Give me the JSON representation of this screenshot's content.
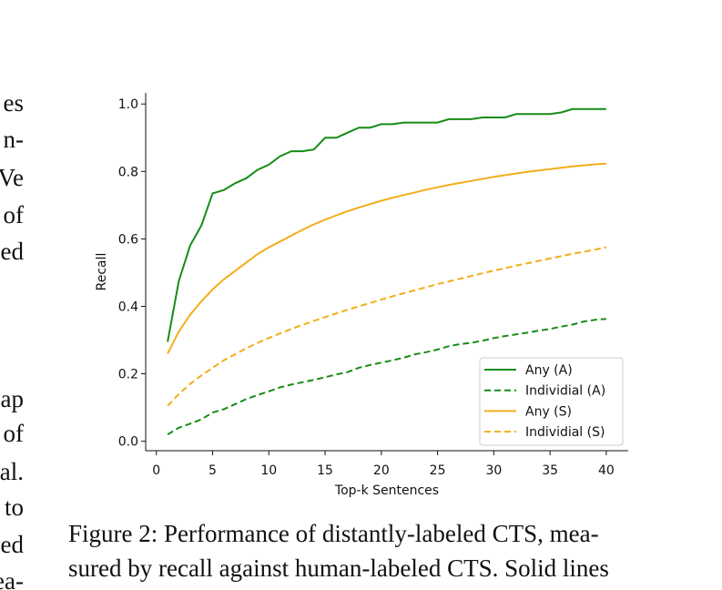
{
  "left_text": [
    "es",
    "n-",
    "Ve",
    "of",
    "ed",
    "ap",
    "of",
    "al.",
    "to",
    "ed",
    "ea-"
  ],
  "chart_data": {
    "type": "line",
    "xlabel": "Top-k Sentences",
    "ylabel": "Recall",
    "x": [
      1,
      2,
      3,
      4,
      5,
      6,
      7,
      8,
      9,
      10,
      11,
      12,
      13,
      14,
      15,
      16,
      17,
      18,
      19,
      20,
      21,
      22,
      23,
      24,
      25,
      26,
      27,
      28,
      29,
      30,
      31,
      32,
      33,
      34,
      35,
      36,
      37,
      38,
      39,
      40
    ],
    "xlim": [
      -0.95,
      41.95
    ],
    "xticks": [
      0,
      5,
      10,
      15,
      20,
      25,
      30,
      35,
      40
    ],
    "ylim": [
      -0.028,
      1.033
    ],
    "yticks": [
      {
        "value": 0,
        "label": "0.0"
      },
      0.2,
      0.4,
      0.6,
      0.8,
      {
        "value": 1,
        "label": "1.0"
      }
    ],
    "grid": false,
    "legend": "lower right",
    "series": [
      {
        "name": "Any (A)",
        "color": "#168c16",
        "linestyle": "solid",
        "values": [
          0.295,
          0.475,
          0.58,
          0.64,
          0.735,
          0.745,
          0.765,
          0.78,
          0.805,
          0.82,
          0.845,
          0.86,
          0.86,
          0.865,
          0.9,
          0.9,
          0.915,
          0.93,
          0.93,
          0.94,
          0.94,
          0.945,
          0.945,
          0.945,
          0.945,
          0.955,
          0.955,
          0.955,
          0.96,
          0.96,
          0.96,
          0.97,
          0.97,
          0.97,
          0.97,
          0.975,
          0.985,
          0.985,
          0.985,
          0.985
        ]
      },
      {
        "name": "Individial (A)",
        "color": "#168c16",
        "linestyle": "dashed",
        "values": [
          0.02,
          0.04,
          0.052,
          0.065,
          0.085,
          0.095,
          0.11,
          0.125,
          0.137,
          0.148,
          0.16,
          0.168,
          0.175,
          0.182,
          0.19,
          0.198,
          0.205,
          0.218,
          0.226,
          0.233,
          0.24,
          0.248,
          0.258,
          0.264,
          0.272,
          0.282,
          0.288,
          0.292,
          0.298,
          0.306,
          0.312,
          0.317,
          0.322,
          0.328,
          0.333,
          0.34,
          0.346,
          0.355,
          0.36,
          0.363
        ]
      },
      {
        "name": "Any (S)",
        "color": "#f3ae1a",
        "linestyle": "solid",
        "values": [
          0.26,
          0.325,
          0.375,
          0.415,
          0.45,
          0.48,
          0.505,
          0.53,
          0.555,
          0.575,
          0.592,
          0.61,
          0.627,
          0.643,
          0.657,
          0.67,
          0.682,
          0.693,
          0.703,
          0.713,
          0.722,
          0.73,
          0.738,
          0.746,
          0.753,
          0.76,
          0.766,
          0.772,
          0.778,
          0.784,
          0.789,
          0.794,
          0.799,
          0.803,
          0.807,
          0.811,
          0.815,
          0.818,
          0.821,
          0.823
        ]
      },
      {
        "name": "Individial (S)",
        "color": "#f3ae1a",
        "linestyle": "dashed",
        "values": [
          0.105,
          0.14,
          0.17,
          0.195,
          0.218,
          0.24,
          0.258,
          0.276,
          0.292,
          0.306,
          0.32,
          0.333,
          0.345,
          0.357,
          0.368,
          0.379,
          0.39,
          0.4,
          0.41,
          0.42,
          0.43,
          0.439,
          0.448,
          0.457,
          0.466,
          0.474,
          0.482,
          0.49,
          0.498,
          0.506,
          0.513,
          0.521,
          0.528,
          0.535,
          0.542,
          0.549,
          0.556,
          0.562,
          0.568,
          0.575
        ]
      }
    ]
  },
  "caption": [
    "Figure 2: Performance of distantly-labeled CTS, mea-",
    "sured by recall against human-labeled CTS. Solid lines"
  ]
}
